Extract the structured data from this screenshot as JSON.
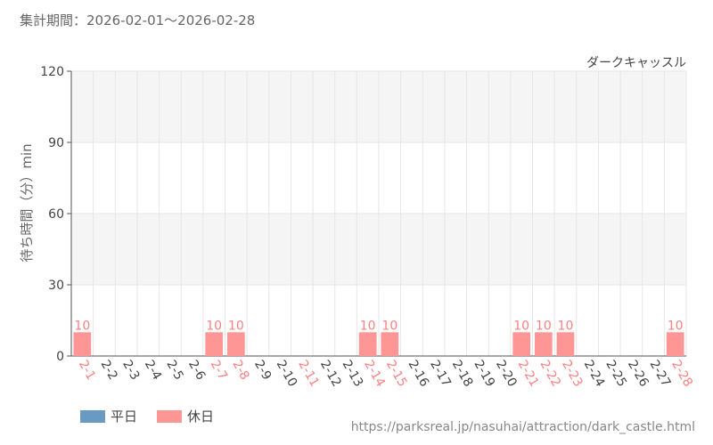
{
  "header": {
    "period_label": "集計期間：2026-02-01～2026-02-28"
  },
  "footer": {
    "source_url": "https://parksreal.jp/nasuhai/attraction/dark_castle.html"
  },
  "legend": {
    "weekday_label": "平日",
    "holiday_label": "休日"
  },
  "colors": {
    "weekday": "#6a9ac4",
    "holiday": "#ff9696",
    "holiday_text": "#ff8080",
    "weekday_text": "#444444",
    "band": "#f5f5f5",
    "grid": "#e6e6e6"
  },
  "chart_data": {
    "type": "bar",
    "title": "ダークキャッスル",
    "ylabel": "待ち時間（分）min",
    "xlabel": "",
    "ylim": [
      0,
      120
    ],
    "yticks": [
      0,
      30,
      60,
      90,
      120
    ],
    "grid": true,
    "legend_position": "bottom-left",
    "categories": [
      "2-1",
      "2-2",
      "2-3",
      "2-4",
      "2-5",
      "2-6",
      "2-7",
      "2-8",
      "2-9",
      "2-10",
      "2-11",
      "2-12",
      "2-13",
      "2-14",
      "2-15",
      "2-16",
      "2-17",
      "2-18",
      "2-19",
      "2-20",
      "2-21",
      "2-22",
      "2-23",
      "2-24",
      "2-25",
      "2-26",
      "2-27",
      "2-28"
    ],
    "holiday": [
      true,
      false,
      false,
      false,
      false,
      false,
      true,
      true,
      false,
      false,
      true,
      false,
      false,
      true,
      true,
      false,
      false,
      false,
      false,
      false,
      true,
      true,
      true,
      false,
      false,
      false,
      false,
      true
    ],
    "values": [
      10,
      null,
      null,
      null,
      null,
      null,
      10,
      10,
      null,
      null,
      null,
      null,
      null,
      10,
      10,
      null,
      null,
      null,
      null,
      null,
      10,
      10,
      10,
      null,
      null,
      null,
      null,
      10
    ]
  }
}
